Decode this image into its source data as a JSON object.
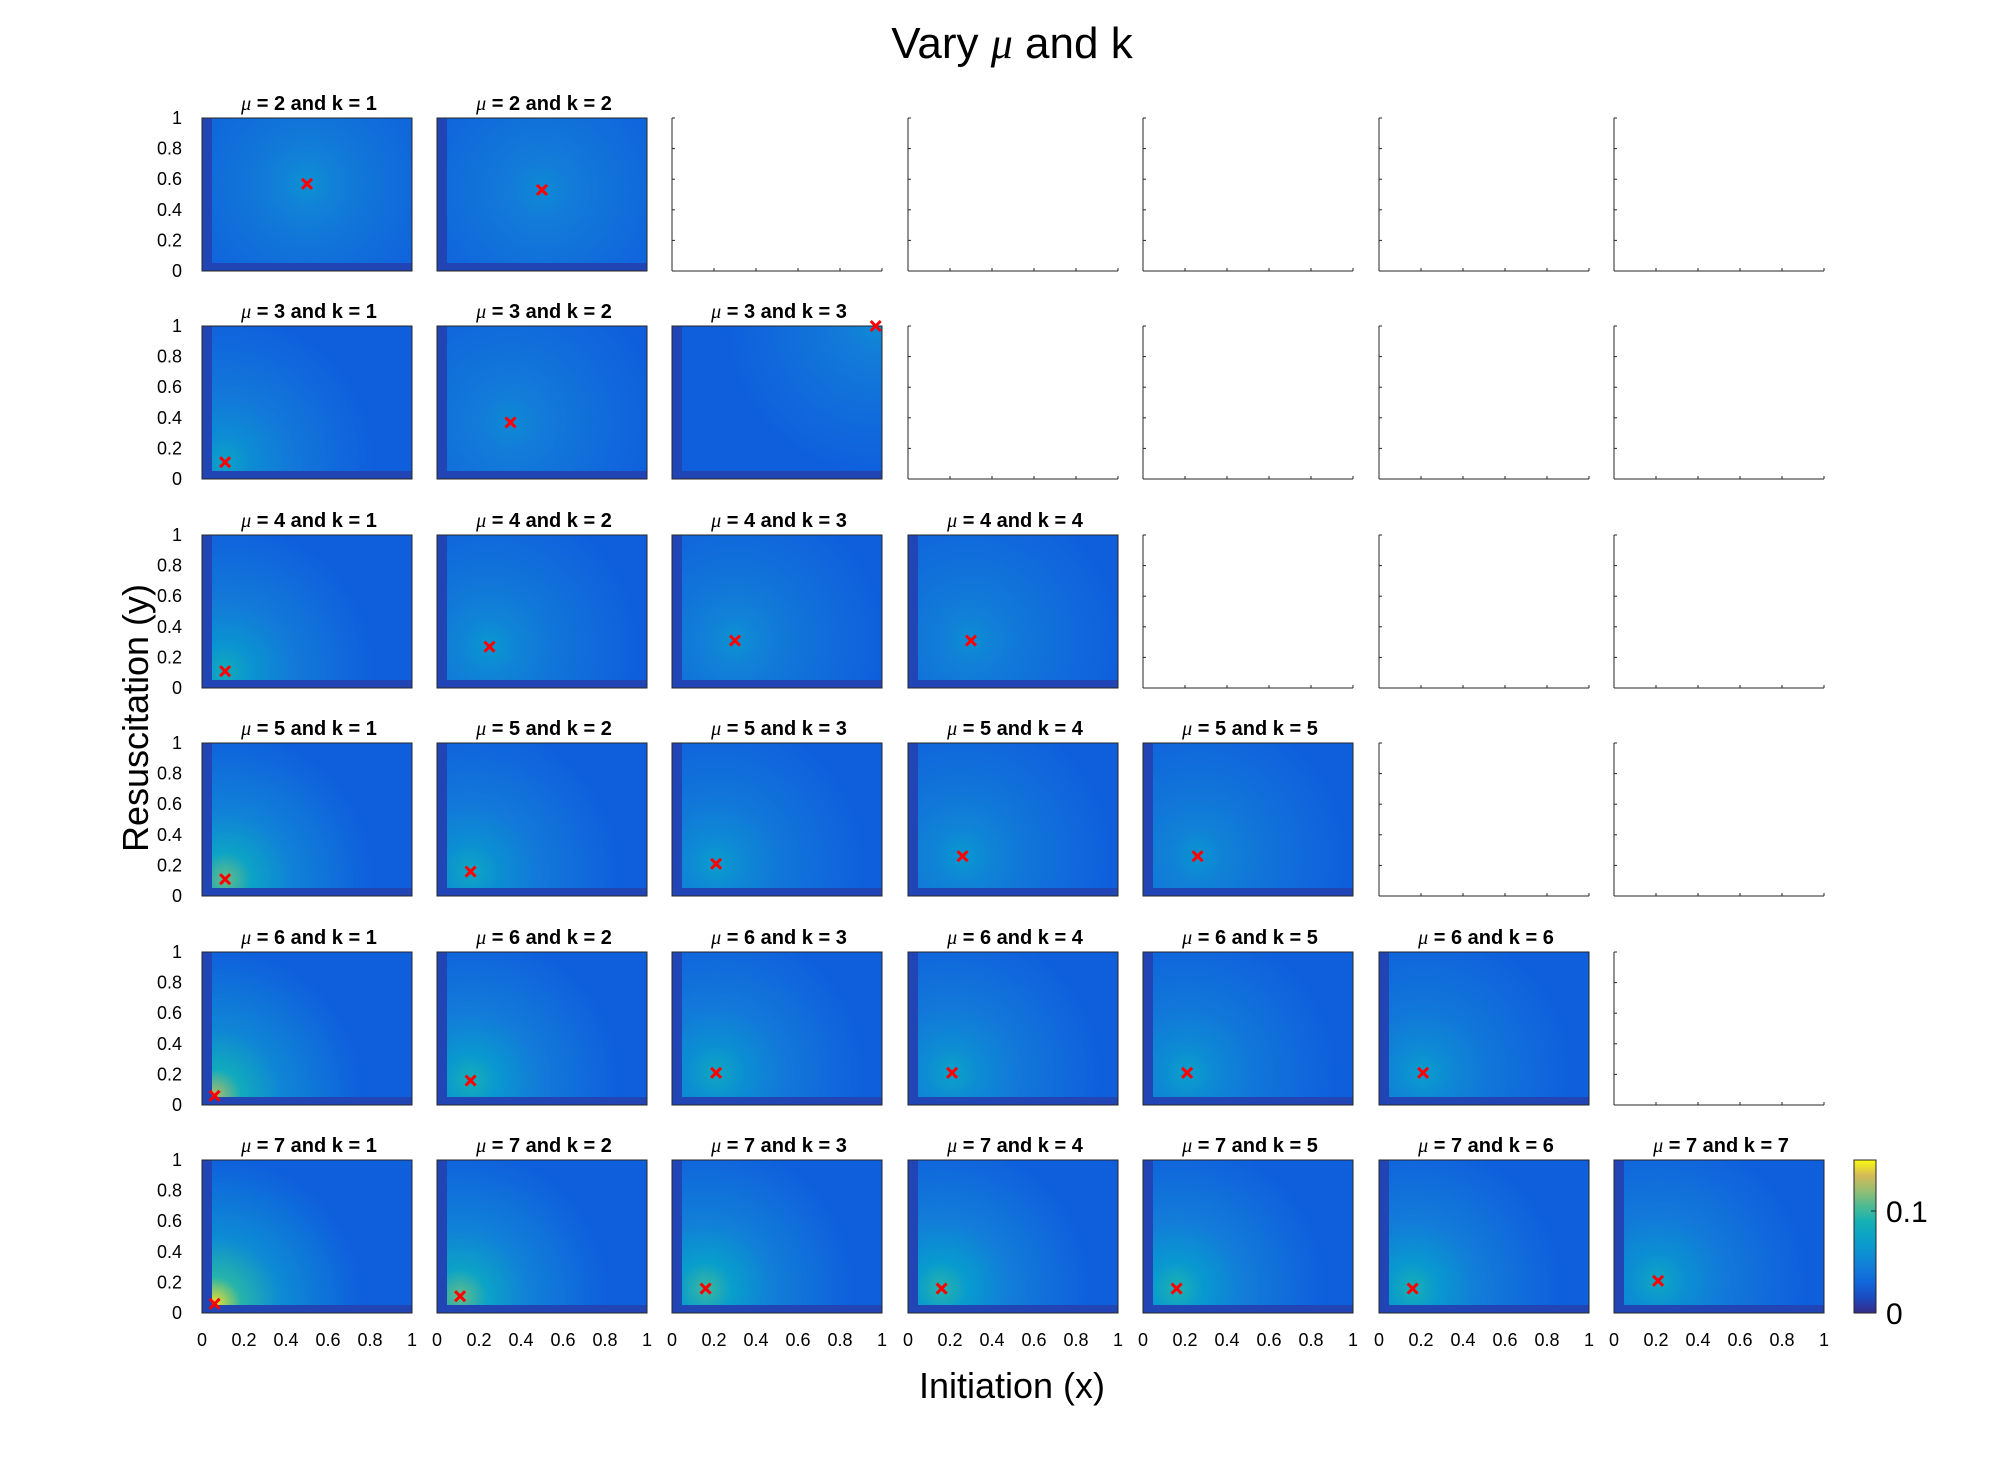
{
  "chart_data": {
    "type": "heatmap",
    "title": "Vary μ and k",
    "xlabel": "Initiation (x)",
    "ylabel": "Resuscitation (y)",
    "xlim": [
      0,
      1
    ],
    "ylim": [
      0,
      1
    ],
    "x_ticks": [
      "0",
      "0.2",
      "0.4",
      "0.6",
      "0.8",
      "1"
    ],
    "y_ticks": [
      "0",
      "0.2",
      "0.4",
      "0.6",
      "0.8",
      "1"
    ],
    "colorbar": {
      "range": [
        0,
        0.15
      ],
      "ticks": [
        {
          "value": 0,
          "label": "0"
        },
        {
          "value": 0.1,
          "label": "0.1"
        }
      ],
      "colormap": "parula"
    },
    "grid_rows": 6,
    "grid_cols": 7,
    "mu_values": [
      2,
      3,
      4,
      5,
      6,
      7
    ],
    "panels": [
      {
        "row": 0,
        "col": 0,
        "mu": 2,
        "k": 1,
        "title": "= 2 and k = 1",
        "marker": [
          0.5,
          0.57
        ],
        "peak": 0.06
      },
      {
        "row": 0,
        "col": 1,
        "mu": 2,
        "k": 2,
        "title": "= 2 and k = 2",
        "marker": [
          0.5,
          0.53
        ],
        "peak": 0.055
      },
      {
        "row": 1,
        "col": 0,
        "mu": 3,
        "k": 1,
        "title": "= 3 and k = 1",
        "marker": [
          0.11,
          0.11
        ],
        "peak": 0.075
      },
      {
        "row": 1,
        "col": 1,
        "mu": 3,
        "k": 2,
        "title": "= 3 and k = 2",
        "marker": [
          0.35,
          0.37
        ],
        "peak": 0.055
      },
      {
        "row": 1,
        "col": 2,
        "mu": 3,
        "k": 3,
        "title": "= 3 and k = 3",
        "marker": [
          0.97,
          1.0
        ],
        "peak": 0.055
      },
      {
        "row": 2,
        "col": 0,
        "mu": 4,
        "k": 1,
        "title": "= 4 and k = 1",
        "marker": [
          0.11,
          0.11
        ],
        "peak": 0.085
      },
      {
        "row": 2,
        "col": 1,
        "mu": 4,
        "k": 2,
        "title": "= 4 and k = 2",
        "marker": [
          0.25,
          0.27
        ],
        "peak": 0.065
      },
      {
        "row": 2,
        "col": 2,
        "mu": 4,
        "k": 3,
        "title": "= 4 and k = 3",
        "marker": [
          0.3,
          0.31
        ],
        "peak": 0.06
      },
      {
        "row": 2,
        "col": 3,
        "mu": 4,
        "k": 4,
        "title": "= 4 and k = 4",
        "marker": [
          0.3,
          0.31
        ],
        "peak": 0.058
      },
      {
        "row": 3,
        "col": 0,
        "mu": 5,
        "k": 1,
        "title": "= 5 and k = 1",
        "marker": [
          0.11,
          0.11
        ],
        "peak": 0.11
      },
      {
        "row": 3,
        "col": 1,
        "mu": 5,
        "k": 2,
        "title": "= 5 and k = 2",
        "marker": [
          0.16,
          0.16
        ],
        "peak": 0.08
      },
      {
        "row": 3,
        "col": 2,
        "mu": 5,
        "k": 3,
        "title": "= 5 and k = 3",
        "marker": [
          0.21,
          0.21
        ],
        "peak": 0.07
      },
      {
        "row": 3,
        "col": 3,
        "mu": 5,
        "k": 4,
        "title": "= 5 and k = 4",
        "marker": [
          0.26,
          0.26
        ],
        "peak": 0.065
      },
      {
        "row": 3,
        "col": 4,
        "mu": 5,
        "k": 5,
        "title": "= 5 and k = 5",
        "marker": [
          0.26,
          0.26
        ],
        "peak": 0.062
      },
      {
        "row": 4,
        "col": 0,
        "mu": 6,
        "k": 1,
        "title": "= 6 and k = 1",
        "marker": [
          0.06,
          0.06
        ],
        "peak": 0.125
      },
      {
        "row": 4,
        "col": 1,
        "mu": 6,
        "k": 2,
        "title": "= 6 and k = 2",
        "marker": [
          0.16,
          0.16
        ],
        "peak": 0.09
      },
      {
        "row": 4,
        "col": 2,
        "mu": 6,
        "k": 3,
        "title": "= 6 and k = 3",
        "marker": [
          0.21,
          0.21
        ],
        "peak": 0.08
      },
      {
        "row": 4,
        "col": 3,
        "mu": 6,
        "k": 4,
        "title": "= 6 and k = 4",
        "marker": [
          0.21,
          0.21
        ],
        "peak": 0.075
      },
      {
        "row": 4,
        "col": 4,
        "mu": 6,
        "k": 5,
        "title": "= 6 and k = 5",
        "marker": [
          0.21,
          0.21
        ],
        "peak": 0.072
      },
      {
        "row": 4,
        "col": 5,
        "mu": 6,
        "k": 6,
        "title": "= 6 and k = 6",
        "marker": [
          0.21,
          0.21
        ],
        "peak": 0.07
      },
      {
        "row": 5,
        "col": 0,
        "mu": 7,
        "k": 1,
        "title": "= 7 and k = 1",
        "marker": [
          0.06,
          0.06
        ],
        "peak": 0.145
      },
      {
        "row": 5,
        "col": 1,
        "mu": 7,
        "k": 2,
        "title": "= 7 and k = 2",
        "marker": [
          0.11,
          0.11
        ],
        "peak": 0.11
      },
      {
        "row": 5,
        "col": 2,
        "mu": 7,
        "k": 3,
        "title": "= 7 and k = 3",
        "marker": [
          0.16,
          0.16
        ],
        "peak": 0.1
      },
      {
        "row": 5,
        "col": 3,
        "mu": 7,
        "k": 4,
        "title": "= 7 and k = 4",
        "marker": [
          0.16,
          0.16
        ],
        "peak": 0.095
      },
      {
        "row": 5,
        "col": 4,
        "mu": 7,
        "k": 5,
        "title": "= 7 and k = 5",
        "marker": [
          0.16,
          0.16
        ],
        "peak": 0.092
      },
      {
        "row": 5,
        "col": 5,
        "mu": 7,
        "k": 6,
        "title": "= 7 and k = 6",
        "marker": [
          0.16,
          0.16
        ],
        "peak": 0.09
      },
      {
        "row": 5,
        "col": 6,
        "mu": 7,
        "k": 7,
        "title": "= 7 and k = 7",
        "marker": [
          0.21,
          0.21
        ],
        "peak": 0.08
      }
    ],
    "marker_color": "#ff0000"
  }
}
